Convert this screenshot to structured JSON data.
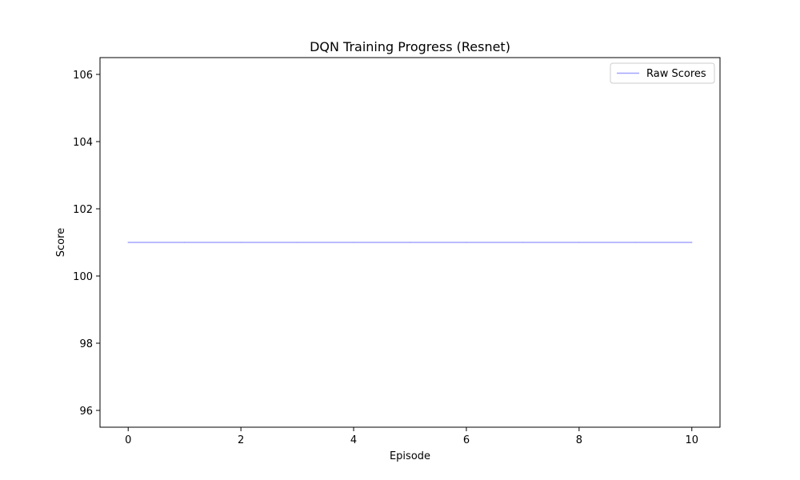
{
  "chart_data": {
    "type": "line",
    "title": "DQN Training Progress (Resnet)",
    "xlabel": "Episode",
    "ylabel": "Score",
    "xlim": [
      -0.5,
      10.5
    ],
    "ylim": [
      95.5,
      106.5
    ],
    "xticks": [
      0,
      2,
      4,
      6,
      8,
      10
    ],
    "yticks": [
      96,
      98,
      100,
      102,
      104,
      106
    ],
    "grid": false,
    "legend": "top-right",
    "series": [
      {
        "name": "Raw Scores",
        "color": "#a3a3ff",
        "x": [
          0,
          1,
          2,
          3,
          4,
          5,
          6,
          7,
          8,
          9,
          10
        ],
        "y": [
          101,
          101,
          101,
          101,
          101,
          101,
          101,
          101,
          101,
          101,
          101
        ]
      }
    ]
  }
}
